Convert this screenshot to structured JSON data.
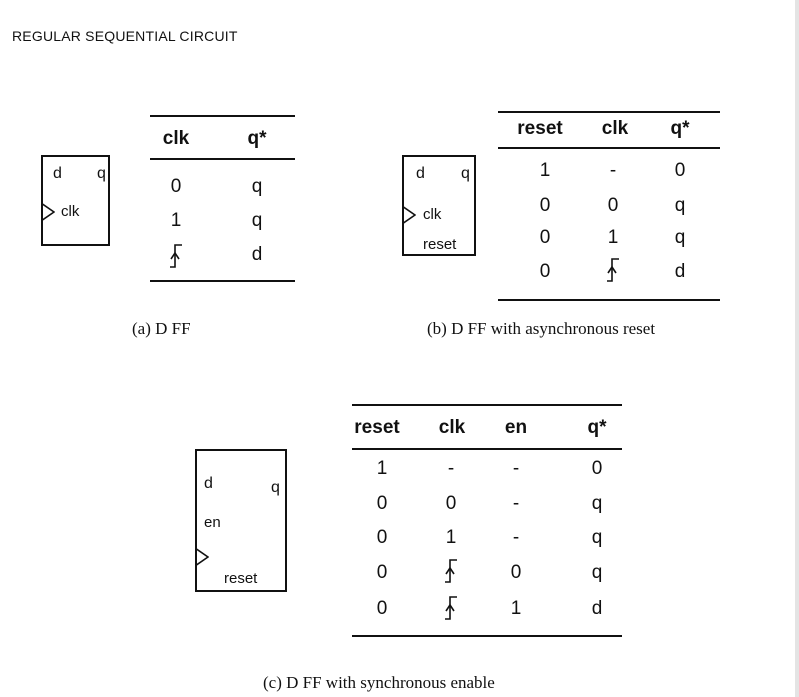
{
  "page_title": "REGULAR SEQUENTIAL CIRCUIT",
  "ff_a": {
    "d": "d",
    "q": "q",
    "clk": "clk"
  },
  "ff_b": {
    "d": "d",
    "q": "q",
    "clk": "clk",
    "reset": "reset"
  },
  "ff_c": {
    "d": "d",
    "q": "q",
    "en": "en",
    "reset": "reset"
  },
  "table_a": {
    "headers": [
      "clk",
      "q*"
    ],
    "rows": [
      [
        "0",
        "q"
      ],
      [
        "1",
        "q"
      ],
      [
        "rising-edge",
        "d"
      ]
    ]
  },
  "table_b": {
    "headers": [
      "reset",
      "clk",
      "q*"
    ],
    "rows": [
      [
        "1",
        "-",
        "0"
      ],
      [
        "0",
        "0",
        "q"
      ],
      [
        "0",
        "1",
        "q"
      ],
      [
        "0",
        "rising-edge",
        "d"
      ]
    ]
  },
  "table_c": {
    "headers": [
      "reset",
      "clk",
      "en",
      "q*"
    ],
    "rows": [
      [
        "1",
        "-",
        "-",
        "0"
      ],
      [
        "0",
        "0",
        "-",
        "q"
      ],
      [
        "0",
        "1",
        "-",
        "q"
      ],
      [
        "0",
        "rising-edge",
        "0",
        "q"
      ],
      [
        "0",
        "rising-edge",
        "1",
        "d"
      ]
    ]
  },
  "captions": {
    "a": "(a) D FF",
    "b": "(b)  D FF with asynchronous reset",
    "c": "(c)  D FF with synchronous enable"
  }
}
